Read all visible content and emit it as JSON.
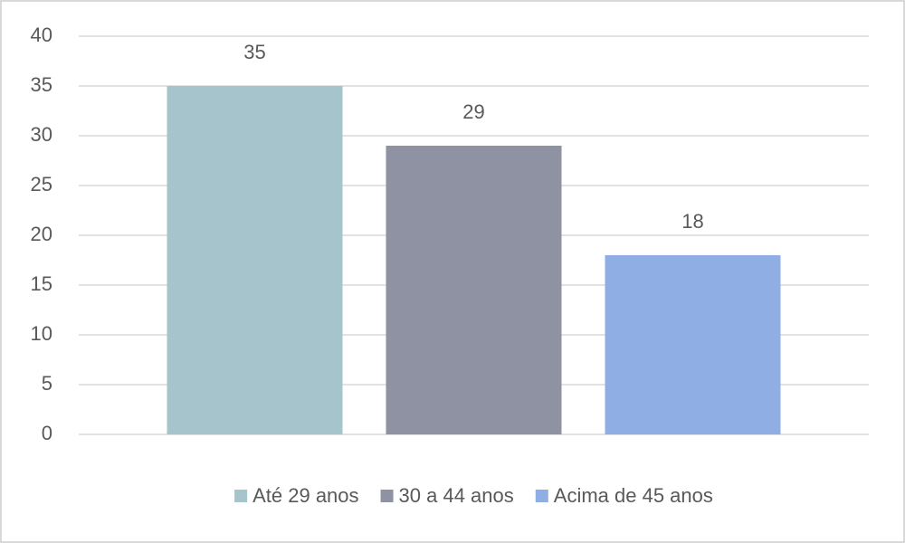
{
  "chart_data": {
    "type": "bar",
    "categories": [
      null
    ],
    "series": [
      {
        "name": "Até 29 anos",
        "color": "#a5c4cb",
        "values": [
          35
        ]
      },
      {
        "name": "30 a 44 anos",
        "color": "#8e92a3",
        "values": [
          29
        ]
      },
      {
        "name": "Acima de 45 anos",
        "color": "#8faee3",
        "values": [
          18
        ]
      }
    ],
    "ylim": [
      0,
      40
    ],
    "yticks": [
      0,
      5,
      10,
      15,
      20,
      25,
      30,
      35,
      40
    ],
    "grid": true,
    "legend": "bottom"
  }
}
